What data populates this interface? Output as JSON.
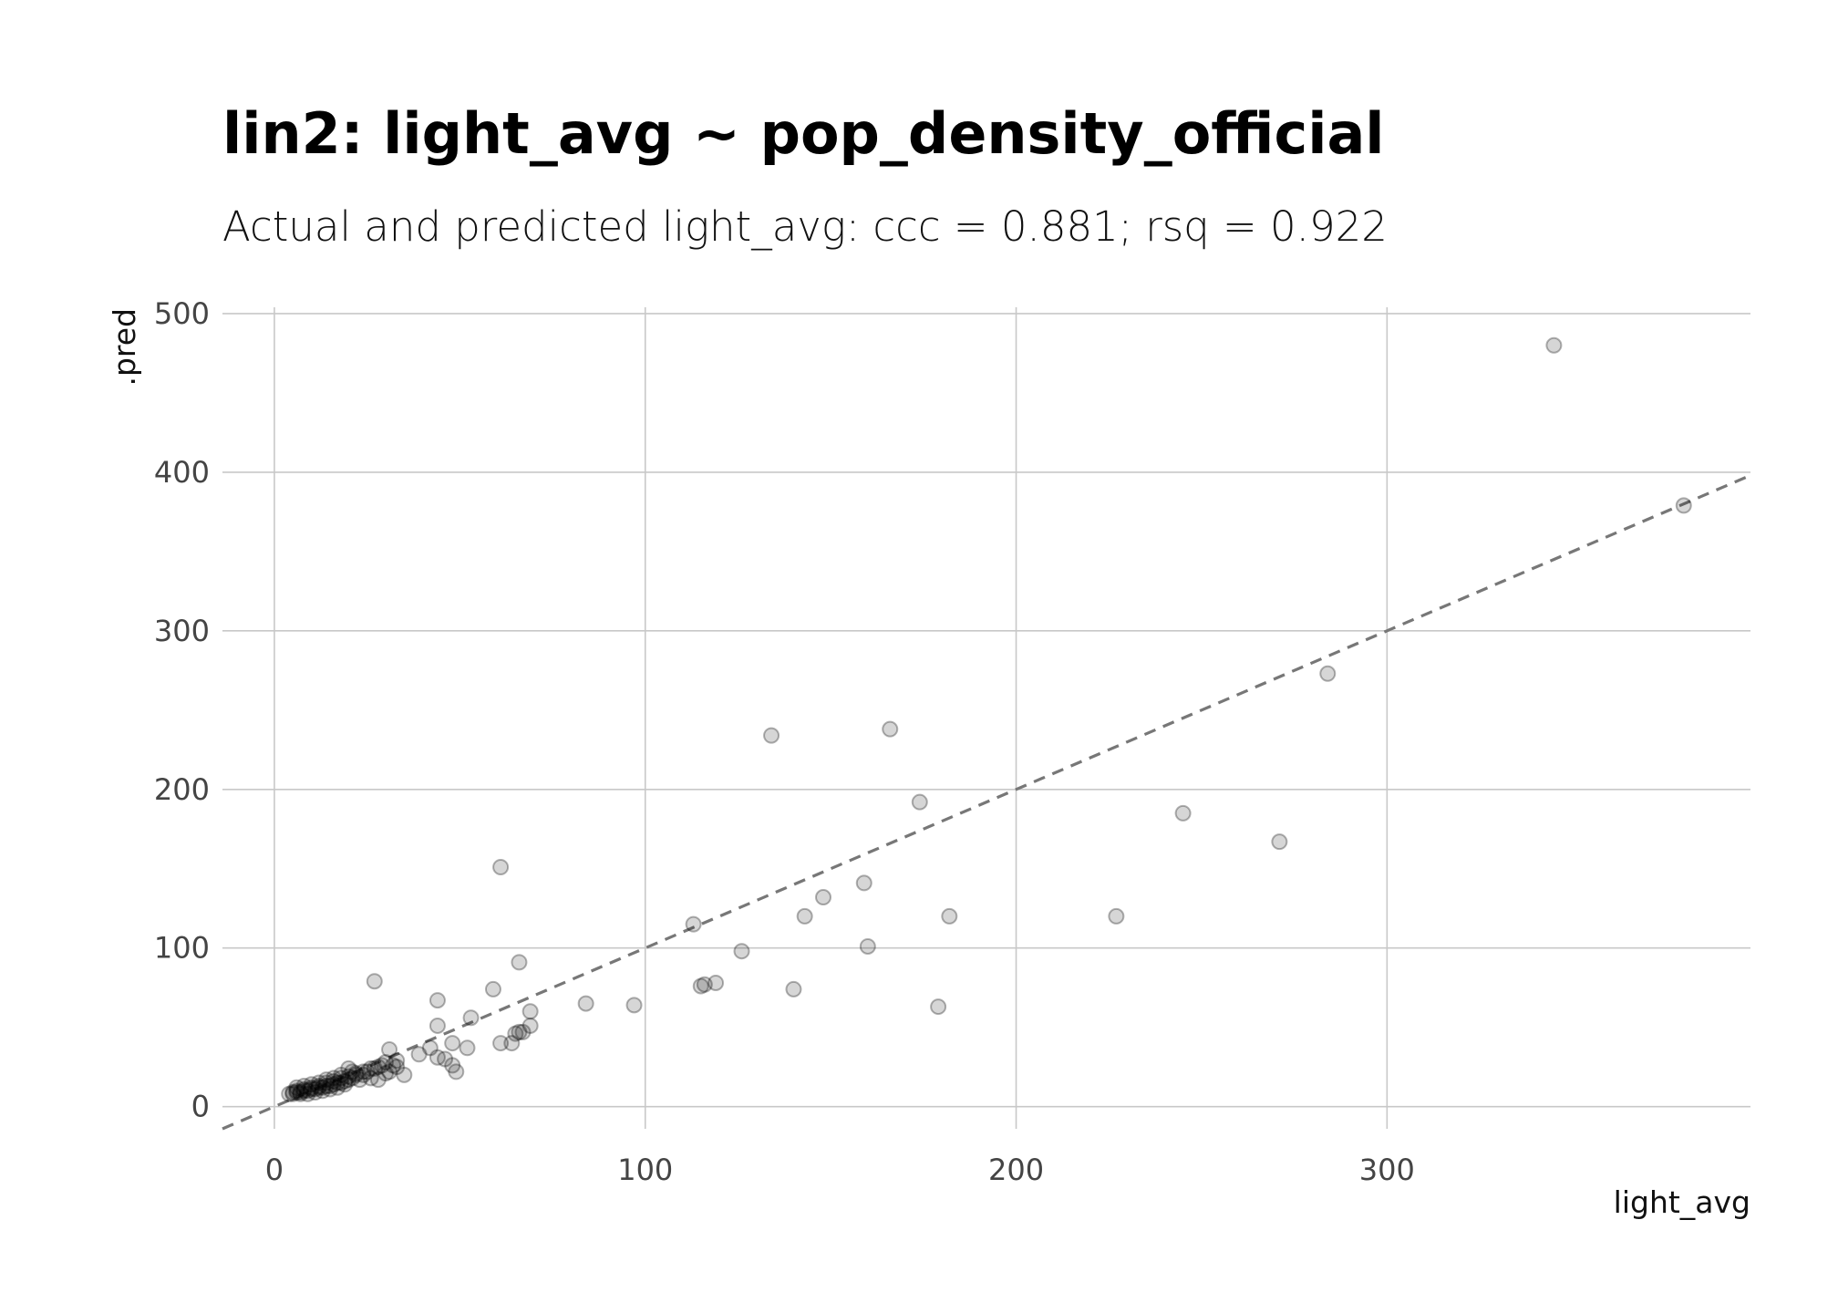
{
  "chart_data": {
    "type": "scatter",
    "title": "lin2: light_avg ~ pop_density_official",
    "subtitle": "Actual and predicted light_avg: ccc = 0.881; rsq = 0.922",
    "xlabel": "light_avg",
    "ylabel": ".pred",
    "xlim": [
      -14,
      398
    ],
    "ylim": [
      -14,
      504
    ],
    "x_ticks": [
      "0",
      "100",
      "200",
      "300"
    ],
    "y_ticks": [
      "0",
      "100",
      "200",
      "300",
      "400",
      "500"
    ],
    "x_tick_values": [
      0,
      100,
      200,
      300
    ],
    "y_tick_values": [
      0,
      100,
      200,
      300,
      400,
      500
    ],
    "reference_line": {
      "slope": 1,
      "intercept": 0,
      "style": "dashed"
    },
    "grid": true,
    "legend": "none",
    "point_color": "#000000",
    "points": [
      [
        345,
        480
      ],
      [
        380,
        379
      ],
      [
        284,
        273
      ],
      [
        166,
        238
      ],
      [
        134,
        234
      ],
      [
        174,
        192
      ],
      [
        245,
        185
      ],
      [
        271,
        167
      ],
      [
        61,
        151
      ],
      [
        159,
        141
      ],
      [
        148,
        132
      ],
      [
        113,
        115
      ],
      [
        182,
        120
      ],
      [
        227,
        120
      ],
      [
        143,
        120
      ],
      [
        160,
        101
      ],
      [
        126,
        98
      ],
      [
        66,
        91
      ],
      [
        119,
        78
      ],
      [
        116,
        77
      ],
      [
        115,
        76
      ],
      [
        140,
        74
      ],
      [
        59,
        74
      ],
      [
        27,
        79
      ],
      [
        179,
        63
      ],
      [
        84,
        65
      ],
      [
        97,
        64
      ],
      [
        44,
        67
      ],
      [
        69,
        60
      ],
      [
        53,
        56
      ],
      [
        44,
        51
      ],
      [
        69,
        51
      ],
      [
        67,
        47
      ],
      [
        65,
        46
      ],
      [
        66,
        47
      ],
      [
        64,
        40
      ],
      [
        61,
        40
      ],
      [
        48,
        40
      ],
      [
        52,
        37
      ],
      [
        42,
        37
      ],
      [
        39,
        33
      ],
      [
        31,
        36
      ],
      [
        44,
        31
      ],
      [
        46,
        30
      ],
      [
        33,
        29
      ],
      [
        48,
        26
      ],
      [
        49,
        22
      ],
      [
        35,
        20
      ],
      [
        30,
        28
      ],
      [
        28,
        25
      ],
      [
        32,
        26
      ],
      [
        26,
        24
      ],
      [
        24,
        22
      ],
      [
        22,
        20
      ],
      [
        21,
        18
      ],
      [
        20,
        17
      ],
      [
        19,
        16
      ],
      [
        18,
        15
      ],
      [
        17,
        15
      ],
      [
        16,
        14
      ],
      [
        15,
        13
      ],
      [
        14,
        13
      ],
      [
        13,
        12
      ],
      [
        12,
        12
      ],
      [
        11,
        11
      ],
      [
        10,
        11
      ],
      [
        9,
        10
      ],
      [
        8,
        10
      ],
      [
        7,
        9
      ],
      [
        6,
        9
      ],
      [
        5,
        8
      ],
      [
        4,
        8
      ],
      [
        6,
        10
      ],
      [
        8,
        11
      ],
      [
        10,
        12
      ],
      [
        12,
        13
      ],
      [
        14,
        15
      ],
      [
        16,
        16
      ],
      [
        18,
        18
      ],
      [
        20,
        19
      ],
      [
        22,
        21
      ],
      [
        24,
        20
      ],
      [
        26,
        18
      ],
      [
        28,
        17
      ],
      [
        19,
        14
      ],
      [
        17,
        12
      ],
      [
        15,
        11
      ],
      [
        13,
        10
      ],
      [
        11,
        9
      ],
      [
        9,
        8
      ],
      [
        7,
        8
      ],
      [
        5,
        9
      ],
      [
        23,
        17
      ],
      [
        25,
        22
      ],
      [
        27,
        24
      ],
      [
        29,
        26
      ],
      [
        21,
        22
      ],
      [
        20,
        24
      ],
      [
        18,
        20
      ],
      [
        16,
        18
      ],
      [
        14,
        17
      ],
      [
        12,
        15
      ],
      [
        10,
        14
      ],
      [
        8,
        13
      ],
      [
        6,
        12
      ],
      [
        31,
        22
      ],
      [
        33,
        25
      ],
      [
        30,
        21
      ]
    ]
  }
}
